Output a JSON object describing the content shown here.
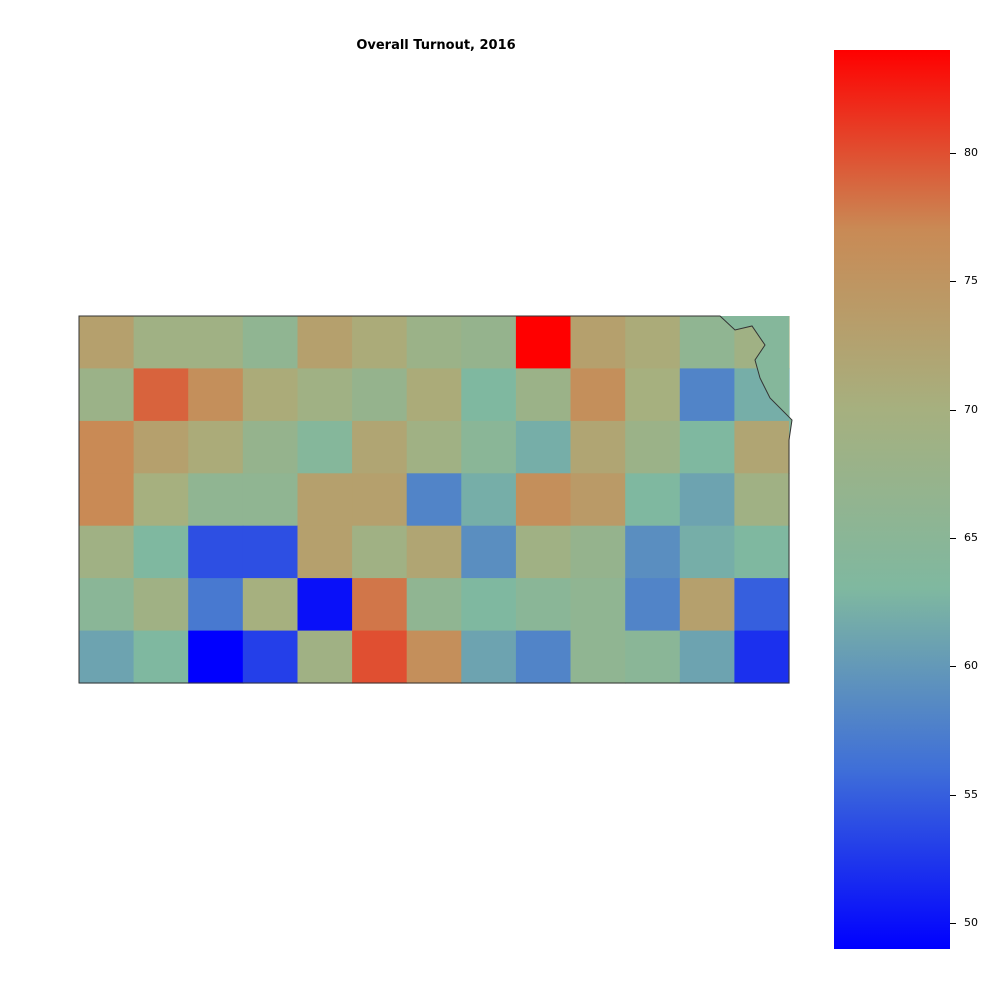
{
  "title": "Overall Turnout, 2016",
  "colorbar": {
    "ticks": [
      {
        "value": 80,
        "label": "80"
      },
      {
        "value": 75,
        "label": "75"
      },
      {
        "value": 70,
        "label": "70"
      },
      {
        "value": 65,
        "label": "65"
      },
      {
        "value": 60,
        "label": "60"
      },
      {
        "value": 55,
        "label": "55"
      },
      {
        "value": 50,
        "label": "50"
      }
    ],
    "min": 49,
    "max": 84,
    "gradient": [
      "#0000ff",
      "#3f6fd8",
      "#7fb8a0",
      "#a6b07f",
      "#c98a55",
      "#ff0000"
    ]
  },
  "county_values": [
    [
      73,
      69,
      69,
      66,
      73,
      71,
      68,
      67,
      84,
      73,
      71,
      66,
      69
    ],
    [
      68,
      79,
      76,
      71,
      69,
      67,
      71,
      63,
      68,
      76,
      70,
      58,
      62
    ],
    [
      77,
      73,
      71,
      67,
      64,
      72,
      69,
      65,
      62,
      72,
      68,
      63,
      72
    ],
    [
      77,
      70,
      66,
      66,
      73,
      73,
      58,
      62,
      76,
      74,
      63,
      61,
      69
    ],
    [
      69,
      63,
      54,
      54,
      73,
      69,
      72,
      59,
      69,
      67,
      59,
      62,
      63
    ],
    [
      65,
      69,
      57,
      70,
      50,
      78,
      66,
      63,
      65,
      66,
      58,
      73,
      55
    ],
    [
      61,
      63,
      49,
      53,
      69,
      80,
      76,
      61,
      58,
      66,
      65,
      61,
      52
    ]
  ]
}
